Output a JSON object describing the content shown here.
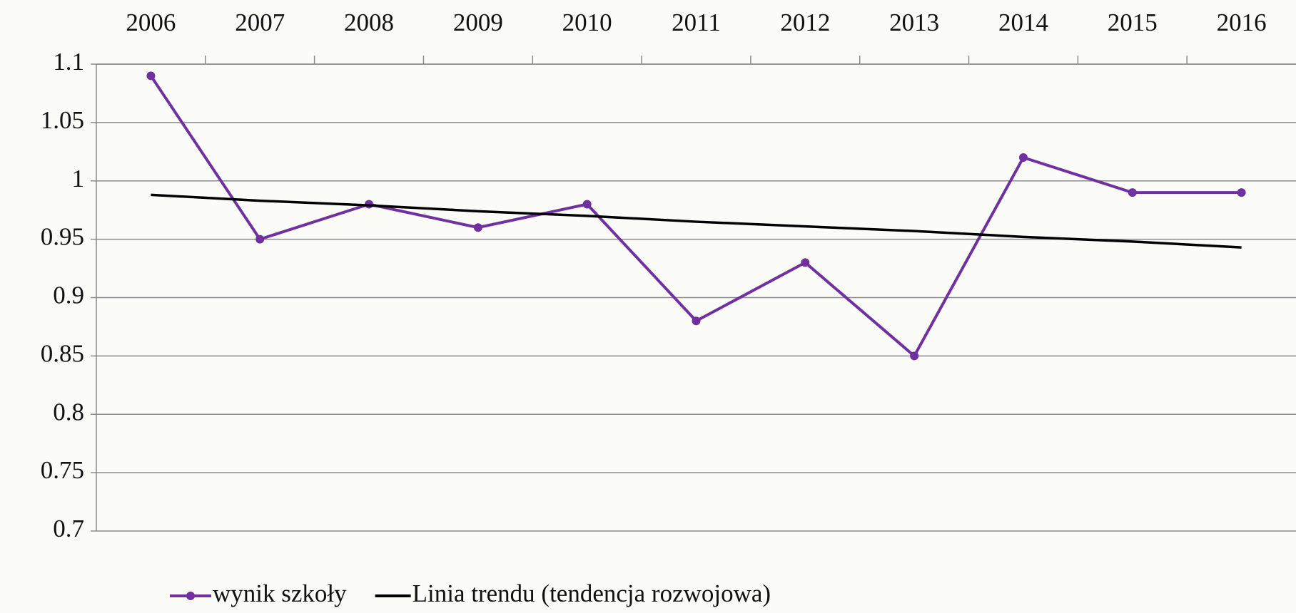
{
  "chart_data": {
    "type": "line",
    "categories": [
      "2006",
      "2007",
      "2008",
      "2009",
      "2010",
      "2011",
      "2012",
      "2013",
      "2014",
      "2015",
      "2016"
    ],
    "series": [
      {
        "name": "wynik szkoły",
        "color": "#7030a0",
        "values": [
          1.09,
          0.95,
          0.98,
          0.96,
          0.98,
          0.88,
          0.93,
          0.85,
          1.02,
          0.99,
          0.99
        ]
      },
      {
        "name": "Linia trendu (tendencja rozwojowa)",
        "color": "#000000",
        "values": [
          0.988,
          0.983,
          0.979,
          0.974,
          0.97,
          0.965,
          0.961,
          0.957,
          0.952,
          0.948,
          0.943
        ]
      }
    ],
    "ylim": [
      0.7,
      1.1
    ],
    "yticks": [
      0.7,
      0.75,
      0.8,
      0.85,
      0.9,
      0.95,
      1,
      1.05,
      1.1
    ],
    "grid": true,
    "legend": "bottom"
  }
}
